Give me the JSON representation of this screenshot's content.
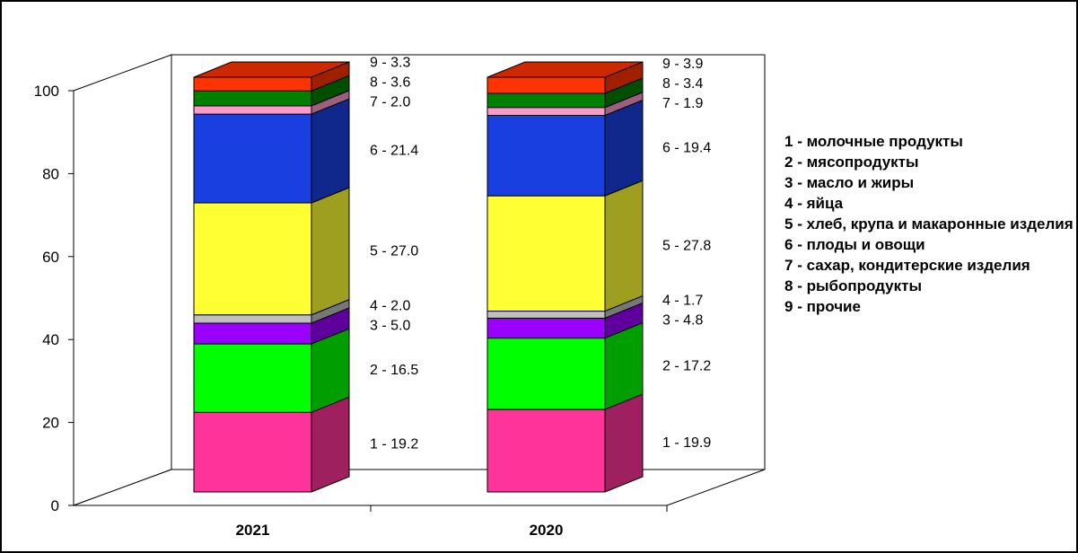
{
  "chart_data": {
    "type": "bar",
    "stacked": true,
    "three_d": true,
    "categories": [
      "2021",
      "2020"
    ],
    "ylim": [
      0,
      100
    ],
    "yticks": [
      "0",
      "20",
      "40",
      "60",
      "80",
      "100"
    ],
    "legend_position": "right",
    "series": [
      {
        "id": "1",
        "name": "молочные  продукты",
        "color": "#FF3399",
        "values": [
          19.2,
          19.9
        ],
        "labels": [
          "1 - 19.2",
          "1 - 19.9"
        ]
      },
      {
        "id": "2",
        "name": "мясопродукты",
        "color": "#00FF00",
        "values": [
          16.5,
          17.2
        ],
        "labels": [
          "2 - 16.5",
          "2 - 17.2"
        ]
      },
      {
        "id": "3",
        "name": "масло и жиры",
        "color": "#9900FF",
        "values": [
          5.0,
          4.8
        ],
        "labels": [
          "3 - 5.0",
          "3 - 4.8"
        ]
      },
      {
        "id": "4",
        "name": "яйца",
        "color": "#C0C0C0",
        "values": [
          2.0,
          1.7
        ],
        "labels": [
          "4 - 2.0",
          "4 - 1.7"
        ]
      },
      {
        "id": "5",
        "name": "хлеб, крупа  и макаронные изделия",
        "color": "#FFFF33",
        "values": [
          27.0,
          27.8
        ],
        "labels": [
          "5 - 27.0",
          "5 - 27.8"
        ]
      },
      {
        "id": "6",
        "name": "плоды и  овощи",
        "color": "#1A3FE0",
        "values": [
          21.4,
          19.4
        ],
        "labels": [
          "6 - 21.4",
          "6 - 19.4"
        ]
      },
      {
        "id": "7",
        "name": "сахар, кондитерские изделия",
        "color": "#FF99CC",
        "values": [
          2.0,
          1.9
        ],
        "labels": [
          "7 - 2.0",
          "7 - 1.9"
        ]
      },
      {
        "id": "8",
        "name": "рыбопродукты",
        "color": "#008000",
        "values": [
          3.6,
          3.4
        ],
        "labels": [
          "8 - 3.6",
          "8 - 3.4"
        ]
      },
      {
        "id": "9",
        "name": "прочие",
        "color": "#FF3300",
        "values": [
          3.3,
          3.9
        ],
        "labels": [
          "9 - 3.3",
          "9 - 3.9"
        ]
      }
    ]
  }
}
